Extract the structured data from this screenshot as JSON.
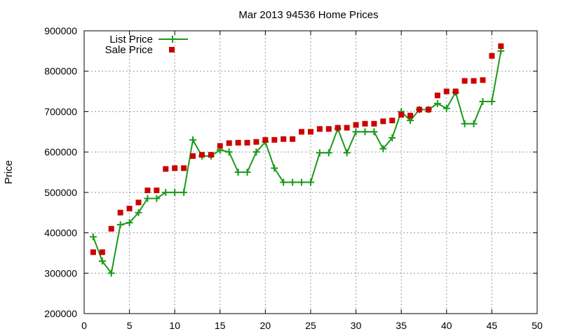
{
  "chart_data": {
    "type": "line",
    "title": "Mar 2013 94536 Home Prices",
    "xlabel": "",
    "ylabel": "Price",
    "xlim": [
      0,
      50
    ],
    "ylim": [
      200000,
      900000
    ],
    "x_ticks": [
      "0",
      "5",
      "10",
      "15",
      "20",
      "25",
      "30",
      "35",
      "40",
      "45",
      "50"
    ],
    "y_ticks": [
      "200000",
      "300000",
      "400000",
      "500000",
      "600000",
      "700000",
      "800000",
      "900000"
    ],
    "grid": true,
    "legend_position": "top-left",
    "series": [
      {
        "name": "List Price",
        "kind": "line-with-plus-markers",
        "color": "#1a9a1a",
        "x": [
          1,
          2,
          3,
          4,
          5,
          6,
          7,
          8,
          9,
          10,
          11,
          12,
          13,
          14,
          15,
          16,
          17,
          18,
          19,
          20,
          21,
          22,
          23,
          24,
          25,
          26,
          27,
          28,
          29,
          30,
          31,
          32,
          33,
          34,
          35,
          36,
          37,
          38,
          39,
          40,
          41,
          42,
          43,
          44,
          45,
          46
        ],
        "y": [
          390000,
          330000,
          300000,
          420000,
          425000,
          450000,
          485000,
          485000,
          500000,
          500000,
          500000,
          630000,
          590000,
          590000,
          605000,
          600000,
          550000,
          550000,
          600000,
          625000,
          560000,
          525000,
          525000,
          525000,
          525000,
          598000,
          598000,
          658000,
          598000,
          650000,
          650000,
          650000,
          608000,
          635000,
          700000,
          678000,
          705000,
          705000,
          720000,
          708000,
          748000,
          670000,
          670000,
          725000,
          725000,
          850000
        ]
      },
      {
        "name": "Sale Price",
        "kind": "square-markers",
        "color": "#cc0000",
        "x": [
          1,
          2,
          3,
          4,
          5,
          6,
          7,
          8,
          9,
          10,
          11,
          12,
          13,
          14,
          15,
          16,
          17,
          18,
          19,
          20,
          21,
          22,
          23,
          24,
          25,
          26,
          27,
          28,
          29,
          30,
          31,
          32,
          33,
          34,
          35,
          36,
          37,
          38,
          39,
          40,
          41,
          42,
          43,
          44,
          45,
          46
        ],
        "y": [
          352000,
          352000,
          410000,
          450000,
          460000,
          475000,
          505000,
          505000,
          558000,
          560000,
          560000,
          590000,
          593000,
          593000,
          615000,
          622000,
          623000,
          623000,
          625000,
          630000,
          630000,
          632000,
          632000,
          650000,
          650000,
          657000,
          657000,
          660000,
          660000,
          667000,
          670000,
          670000,
          676000,
          678000,
          692000,
          690000,
          705000,
          705000,
          740000,
          750000,
          750000,
          776000,
          776000,
          778000,
          838000,
          862000
        ]
      }
    ]
  }
}
